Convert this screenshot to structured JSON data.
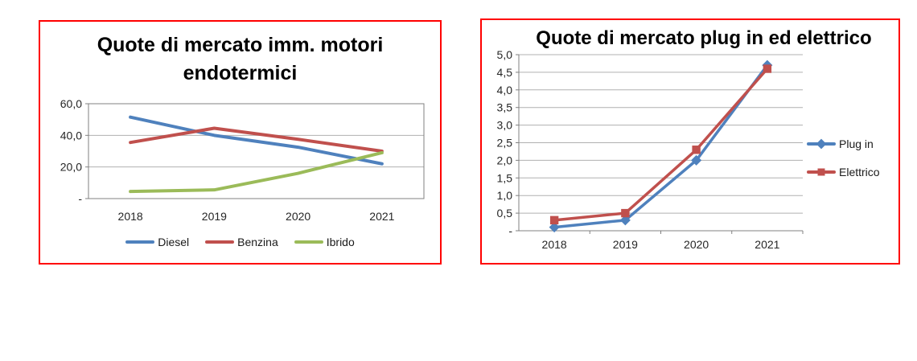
{
  "chart_data": [
    {
      "type": "line",
      "title": "Quote di mercato imm. motori endotermici",
      "categories": [
        "2018",
        "2019",
        "2020",
        "2021"
      ],
      "series": [
        {
          "name": "Diesel",
          "color": "#4F81BD",
          "marker": "none",
          "values": [
            51.5,
            40.0,
            32.5,
            22.0
          ]
        },
        {
          "name": "Benzina",
          "color": "#C0504D",
          "marker": "none",
          "values": [
            35.5,
            44.5,
            37.5,
            30.0
          ]
        },
        {
          "name": "Ibrido",
          "color": "#9BBB59",
          "marker": "none",
          "values": [
            4.5,
            5.5,
            16.0,
            29.0
          ]
        }
      ],
      "ylim": [
        0,
        60
      ],
      "y_tick_step": 20,
      "y_tick_labels": [
        "-",
        "20,0",
        "40,0",
        "60,0"
      ],
      "grid": true,
      "legend_position": "bottom",
      "border_color": "#FF0000",
      "grid_color": "#b0b0b0",
      "axis_color": "#808080",
      "tick_text_color": "#262626"
    },
    {
      "type": "line",
      "title": "Quote di mercato plug in ed elettrico",
      "categories": [
        "2018",
        "2019",
        "2020",
        "2021"
      ],
      "series": [
        {
          "name": "Plug in",
          "color": "#4F81BD",
          "marker": "diamond",
          "values": [
            0.1,
            0.3,
            2.0,
            4.7
          ]
        },
        {
          "name": "Elettrico",
          "color": "#C0504D",
          "marker": "square",
          "values": [
            0.3,
            0.5,
            2.3,
            4.6
          ]
        }
      ],
      "ylim": [
        0,
        5
      ],
      "y_tick_step": 0.5,
      "y_tick_labels": [
        "-",
        "0,5",
        "1,0",
        "1,5",
        "2,0",
        "2,5",
        "3,0",
        "3,5",
        "4,0",
        "4,5",
        "5,0"
      ],
      "grid": true,
      "legend_position": "right",
      "border_color": "#FF0000",
      "grid_color": "#b0b0b0",
      "axis_color": "#808080",
      "tick_text_color": "#262626"
    }
  ]
}
